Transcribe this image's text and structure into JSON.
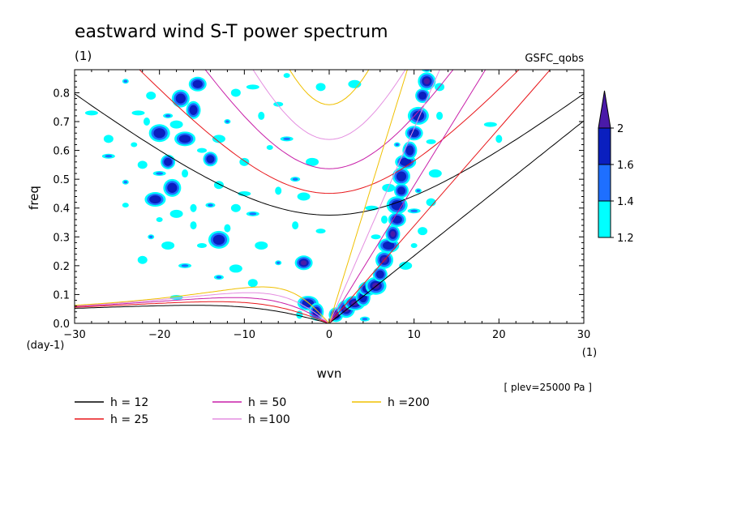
{
  "title": "eastward wind S-T power spectrum",
  "subtitle_left": "(1)",
  "subtitle_right": "GSFC_qobs",
  "footnote": "[ plev=25000 Pa ]",
  "chart_data": {
    "type": "contour",
    "xlabel": "wvn",
    "ylabel": "freq",
    "x_unit": "(1)",
    "y_unit": "(day-1)",
    "xlim": [
      -30,
      30
    ],
    "ylim": [
      0,
      0.88
    ],
    "x_ticks": [
      -30,
      -20,
      -10,
      0,
      10,
      20,
      30
    ],
    "x_tick_labels": [
      "−30",
      "−20",
      "−10",
      "0",
      "10",
      "20",
      "30"
    ],
    "y_ticks": [
      0,
      0.1,
      0.2,
      0.3,
      0.4,
      0.5,
      0.6,
      0.7,
      0.8
    ],
    "y_tick_labels": [
      "0.0",
      "0.1",
      "0.2",
      "0.3",
      "0.4",
      "0.5",
      "0.6",
      "0.7",
      "0.8"
    ],
    "colorbar": {
      "levels": [
        "1.2",
        "1.4",
        "1.6",
        "2"
      ],
      "colors": [
        "#00ffff",
        "#1e6fff",
        "#0a1fbf",
        "#4a1aa8"
      ]
    },
    "dispersion_curves": [
      {
        "label": "h = 12",
        "h": 12,
        "color": "#000000"
      },
      {
        "label": "h = 25",
        "h": 25,
        "color": "#e8161a"
      },
      {
        "label": "h = 50",
        "h": 50,
        "color": "#c81ea8"
      },
      {
        "label": "h =100",
        "h": 100,
        "color": "#e48ee0"
      },
      {
        "label": "h =200",
        "h": 200,
        "color": "#f0c000"
      }
    ],
    "contour_blobs": [
      {
        "x": 0.8,
        "y": 0.03,
        "level": 4
      },
      {
        "x": 2.0,
        "y": 0.05,
        "level": 4
      },
      {
        "x": 3.0,
        "y": 0.07,
        "level": 4
      },
      {
        "x": 4.0,
        "y": 0.09,
        "level": 3
      },
      {
        "x": 4.5,
        "y": 0.12,
        "level": 3
      },
      {
        "x": 5.5,
        "y": 0.13,
        "level": 4
      },
      {
        "x": 6.0,
        "y": 0.17,
        "level": 3
      },
      {
        "x": 6.5,
        "y": 0.22,
        "level": 4
      },
      {
        "x": 7.0,
        "y": 0.27,
        "level": 3
      },
      {
        "x": 7.5,
        "y": 0.31,
        "level": 4
      },
      {
        "x": 8.0,
        "y": 0.36,
        "level": 3
      },
      {
        "x": 8.0,
        "y": 0.41,
        "level": 3
      },
      {
        "x": 8.5,
        "y": 0.46,
        "level": 3
      },
      {
        "x": 8.5,
        "y": 0.51,
        "level": 3
      },
      {
        "x": 9.0,
        "y": 0.56,
        "level": 3
      },
      {
        "x": 9.5,
        "y": 0.6,
        "level": 3
      },
      {
        "x": 10.0,
        "y": 0.66,
        "level": 3
      },
      {
        "x": 10.5,
        "y": 0.72,
        "level": 3
      },
      {
        "x": 11.0,
        "y": 0.79,
        "level": 3
      },
      {
        "x": 11.5,
        "y": 0.84,
        "level": 4
      },
      {
        "x": -2.5,
        "y": 0.07,
        "level": 3
      },
      {
        "x": -1.5,
        "y": 0.04,
        "level": 3
      },
      {
        "x": -3.0,
        "y": 0.21,
        "level": 4
      },
      {
        "x": -20.0,
        "y": 0.66,
        "level": 3
      },
      {
        "x": -19.0,
        "y": 0.56,
        "level": 3
      },
      {
        "x": -18.5,
        "y": 0.47,
        "level": 3
      },
      {
        "x": -17.0,
        "y": 0.64,
        "level": 3
      },
      {
        "x": -16.0,
        "y": 0.74,
        "level": 3
      },
      {
        "x": -15.5,
        "y": 0.83,
        "level": 3
      },
      {
        "x": -13.0,
        "y": 0.29,
        "level": 3
      },
      {
        "x": -14.0,
        "y": 0.57,
        "level": 3
      },
      {
        "x": -17.5,
        "y": 0.78,
        "level": 3
      },
      {
        "x": -20.5,
        "y": 0.43,
        "level": 3
      }
    ],
    "contour_speckles": [
      [
        -24,
        0.84
      ],
      [
        -21,
        0.79
      ],
      [
        -22.5,
        0.73
      ],
      [
        -21.5,
        0.7
      ],
      [
        -19,
        0.72
      ],
      [
        -18,
        0.69
      ],
      [
        -23,
        0.62
      ],
      [
        -22,
        0.55
      ],
      [
        -20,
        0.52
      ],
      [
        -17,
        0.52
      ],
      [
        -15,
        0.6
      ],
      [
        -13,
        0.64
      ],
      [
        -12,
        0.7
      ],
      [
        -11,
        0.8
      ],
      [
        -9,
        0.82
      ],
      [
        -16,
        0.4
      ],
      [
        -14,
        0.41
      ],
      [
        -18,
        0.38
      ],
      [
        -20,
        0.36
      ],
      [
        -11,
        0.4
      ],
      [
        -9,
        0.38
      ],
      [
        -12,
        0.33
      ],
      [
        -15,
        0.27
      ],
      [
        -19,
        0.27
      ],
      [
        -24,
        0.49
      ],
      [
        -26,
        0.64
      ],
      [
        -28,
        0.73
      ],
      [
        -6,
        0.46
      ],
      [
        -4,
        0.5
      ],
      [
        -2,
        0.56
      ],
      [
        -7,
        0.61
      ],
      [
        -10,
        0.56
      ],
      [
        -5,
        0.64
      ],
      [
        -8,
        0.72
      ],
      [
        -6,
        0.76
      ],
      [
        -3,
        0.44
      ],
      [
        -21,
        0.3
      ],
      [
        -13,
        0.48
      ],
      [
        -10,
        0.45
      ],
      [
        -16,
        0.34
      ],
      [
        -13,
        0.16
      ],
      [
        -11,
        0.19
      ],
      [
        -24,
        0.41
      ],
      [
        -22,
        0.22
      ],
      [
        -17,
        0.2
      ],
      [
        13,
        0.72
      ],
      [
        12,
        0.63
      ],
      [
        12.5,
        0.52
      ],
      [
        10.5,
        0.46
      ],
      [
        13,
        0.82
      ],
      [
        19,
        0.69
      ],
      [
        20,
        0.64
      ],
      [
        11.5,
        0.88
      ],
      [
        3,
        0.83
      ],
      [
        -5,
        0.86
      ],
      [
        -1,
        0.82
      ],
      [
        -26,
        0.58
      ],
      [
        -4,
        0.34
      ],
      [
        -1,
        0.32
      ],
      [
        -8,
        0.27
      ],
      [
        -6,
        0.21
      ],
      [
        -9,
        0.14
      ],
      [
        -18,
        0.09
      ],
      [
        -3.5,
        0.03
      ],
      [
        4.2,
        0.015
      ],
      [
        9,
        0.2
      ],
      [
        10,
        0.27
      ],
      [
        11,
        0.32
      ],
      [
        10,
        0.39
      ],
      [
        6.5,
        0.36
      ],
      [
        5.5,
        0.3
      ],
      [
        7,
        0.47
      ],
      [
        8,
        0.62
      ],
      [
        12,
        0.42
      ],
      [
        5,
        0.4
      ]
    ]
  },
  "legend": [
    {
      "label": "h = 12",
      "color": "#000000"
    },
    {
      "label": "h = 25",
      "color": "#e8161a"
    },
    {
      "label": "h = 50",
      "color": "#c81ea8"
    },
    {
      "label": "h =100",
      "color": "#e48ee0"
    },
    {
      "label": "h =200",
      "color": "#f0c000"
    }
  ]
}
